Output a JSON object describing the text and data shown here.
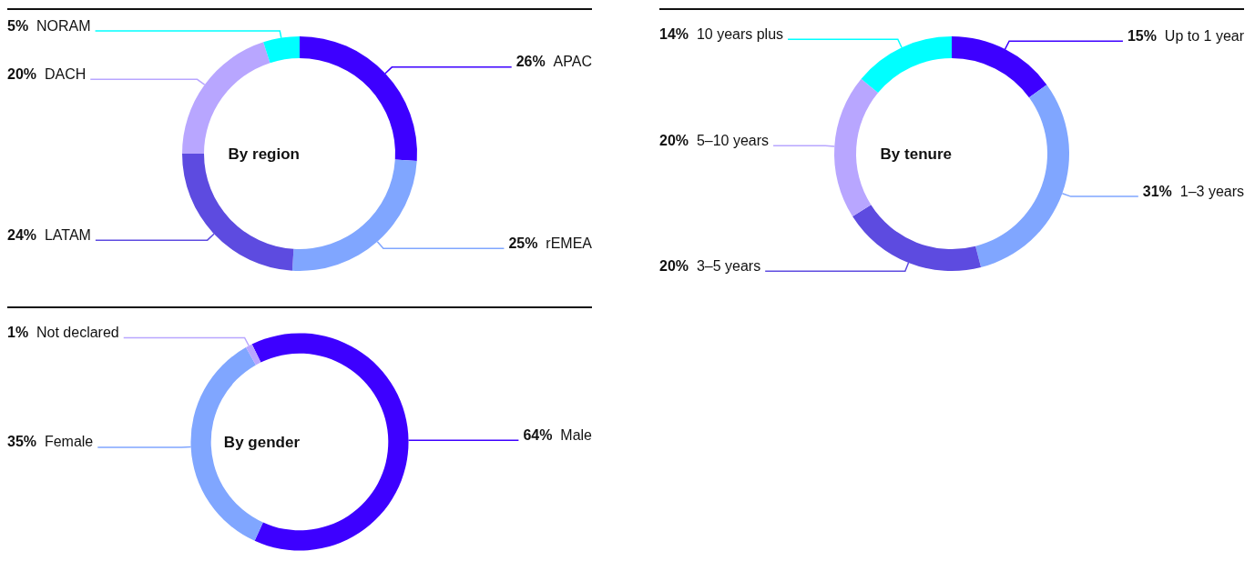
{
  "chart_data": [
    {
      "type": "donut",
      "title": "By region",
      "categories": [
        "APAC",
        "rEMEA",
        "LATAM",
        "DACH",
        "NORAM"
      ],
      "values": [
        26,
        25,
        24,
        20,
        5
      ],
      "value_labels": [
        "26%",
        "25%",
        "24%",
        "20%",
        "5%"
      ],
      "colors": [
        "#3d00ff",
        "#80a6ff",
        "#5d4be0",
        "#b8a6ff",
        "#00ffff"
      ],
      "legend": false
    },
    {
      "type": "donut",
      "title": "By tenure",
      "categories": [
        "Up to 1 year",
        "1–3 years",
        "3–5 years",
        "5–10 years",
        "10 years plus"
      ],
      "values": [
        15,
        31,
        20,
        20,
        14
      ],
      "value_labels": [
        "15%",
        "31%",
        "20%",
        "20%",
        "14%"
      ],
      "colors": [
        "#3d00ff",
        "#80a6ff",
        "#5d4be0",
        "#b8a6ff",
        "#00ffff"
      ],
      "legend": false
    },
    {
      "type": "donut",
      "title": "By gender",
      "categories": [
        "Male",
        "Female",
        "Not declared"
      ],
      "values": [
        64,
        35,
        1
      ],
      "value_labels": [
        "64%",
        "35%",
        "1%"
      ],
      "colors": [
        "#3d00ff",
        "#80a6ff",
        "#b8a6ff"
      ],
      "legend": false
    }
  ]
}
